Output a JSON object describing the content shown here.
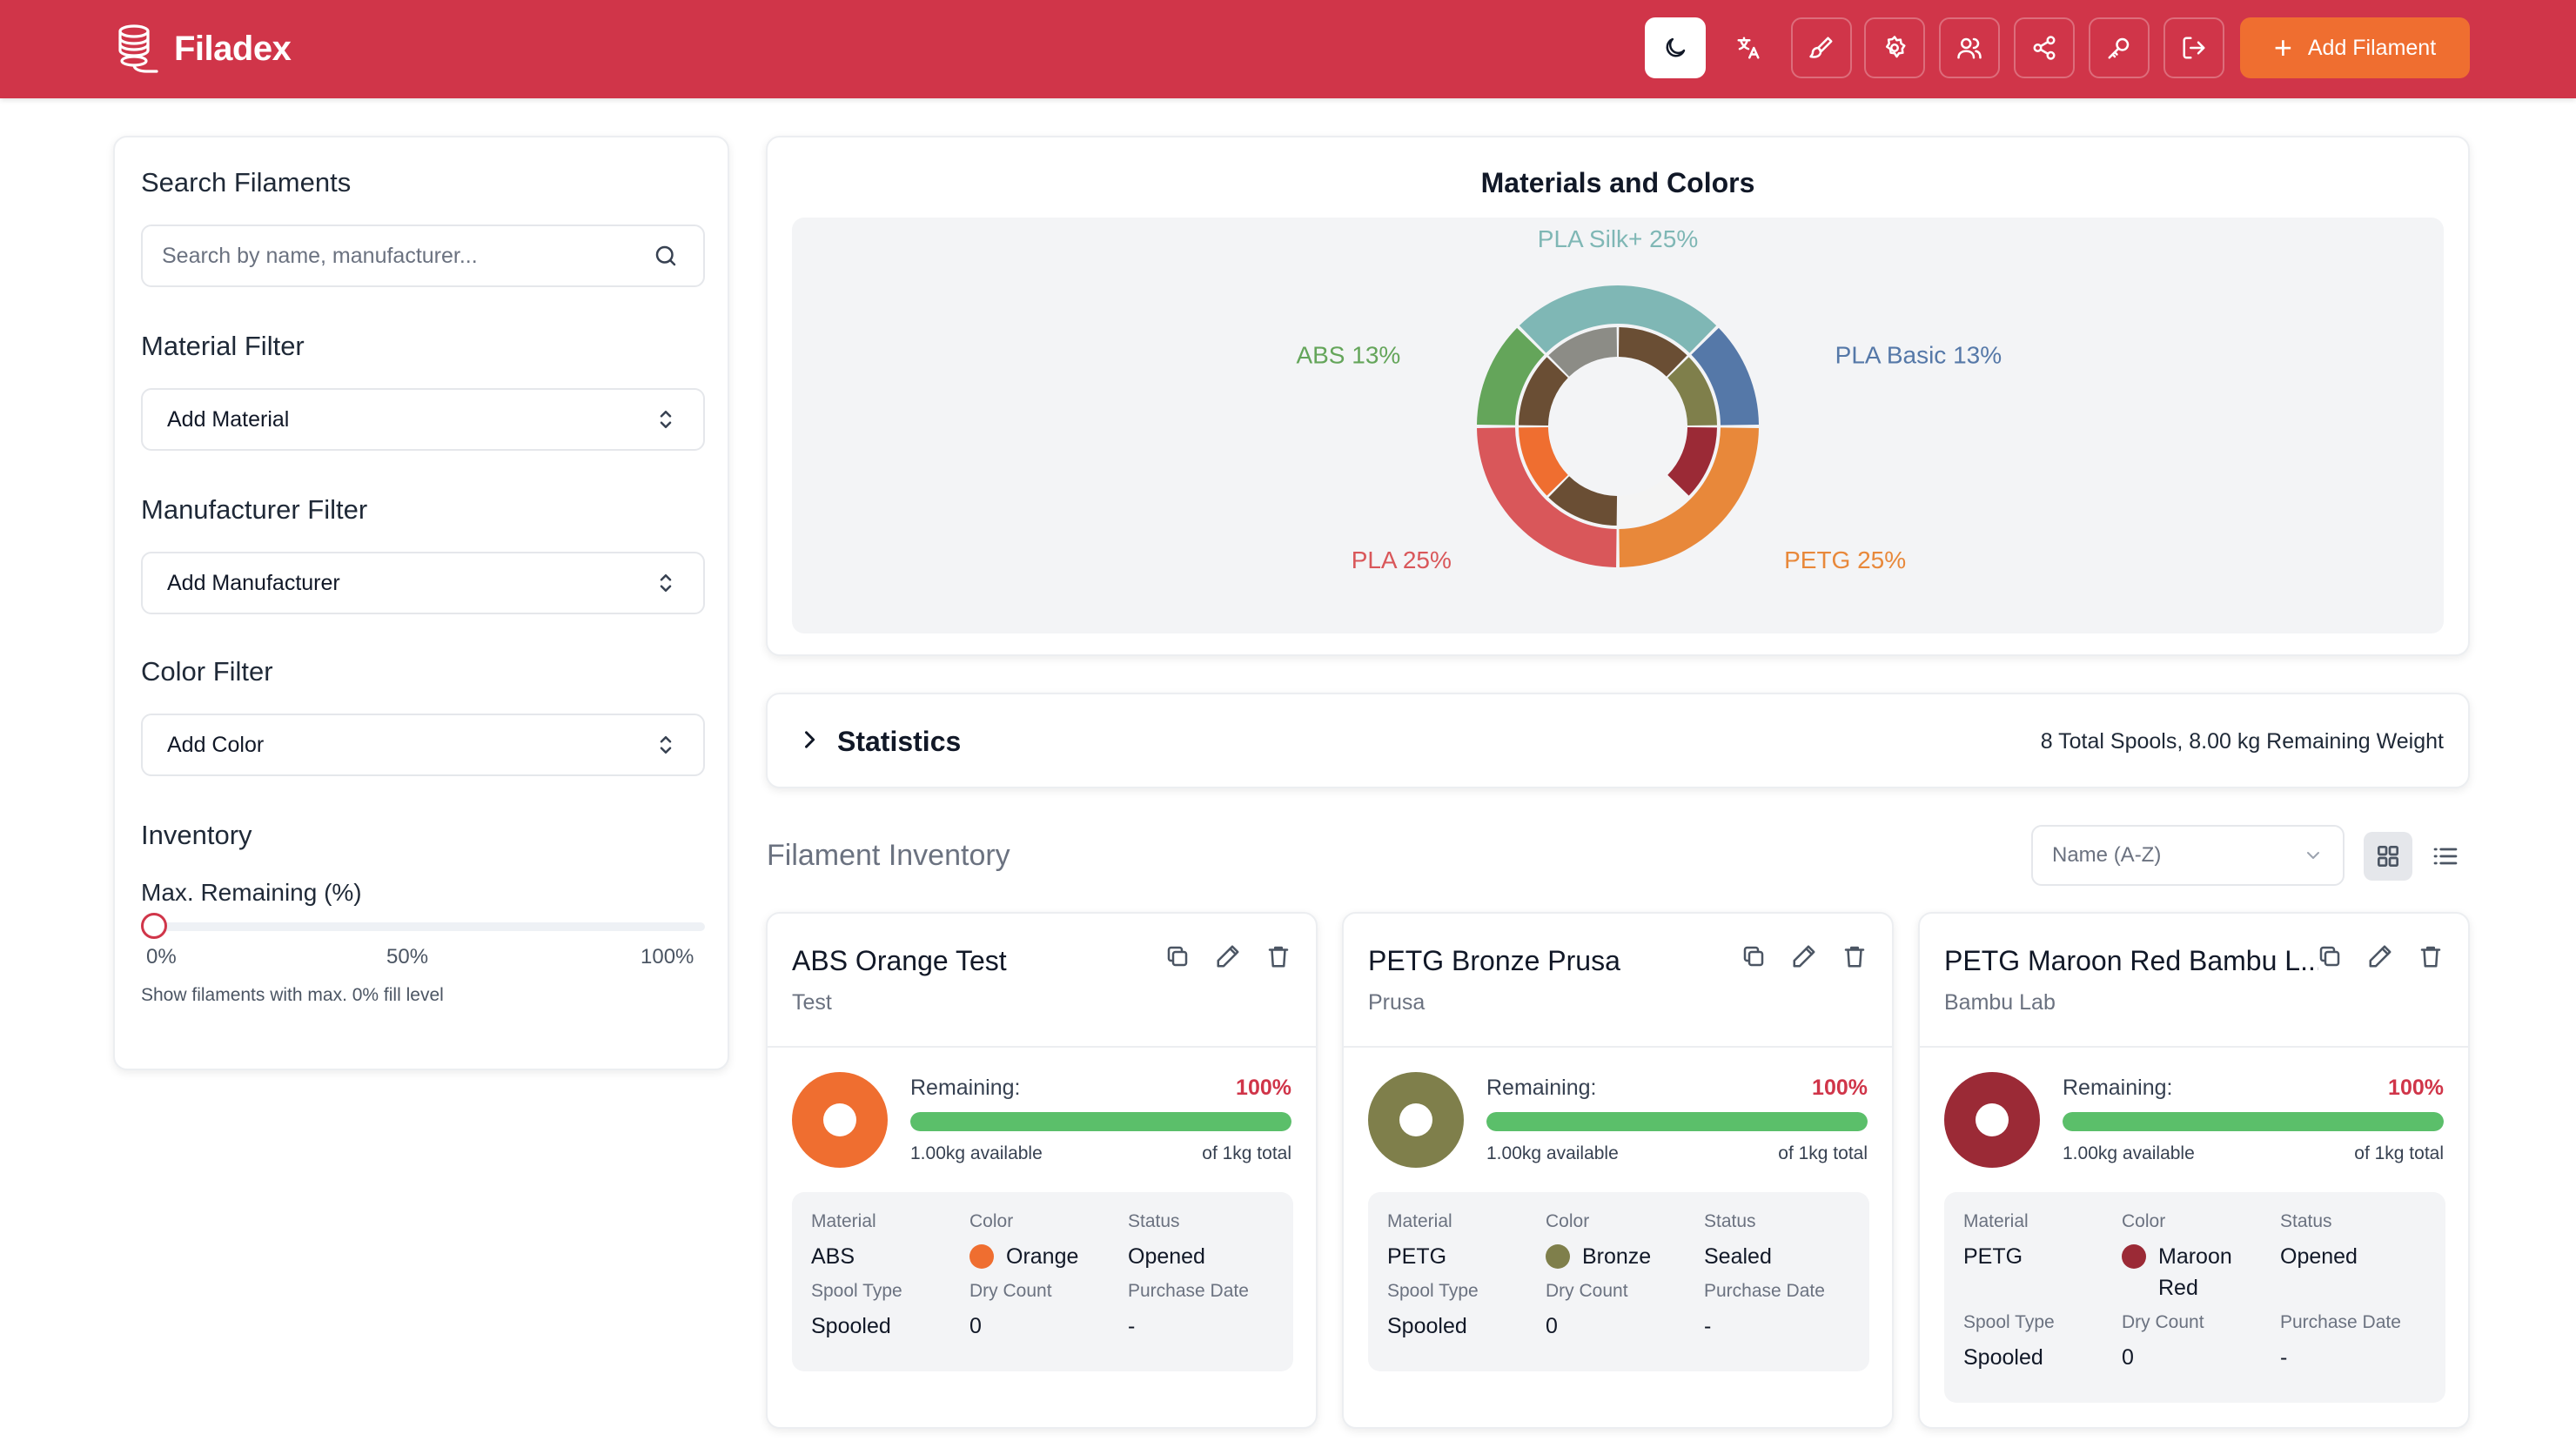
{
  "app": {
    "name": "Filadex"
  },
  "header": {
    "buttons": [
      {
        "name": "dark-mode-button",
        "icon": "moon-icon"
      },
      {
        "name": "language-button",
        "icon": "translate-icon"
      },
      {
        "name": "theme-button",
        "icon": "paintbrush-icon"
      },
      {
        "name": "settings-button",
        "icon": "gear-icon"
      },
      {
        "name": "users-button",
        "icon": "users-icon"
      },
      {
        "name": "share-button",
        "icon": "share-icon"
      },
      {
        "name": "password-button",
        "icon": "key-icon"
      },
      {
        "name": "logout-button",
        "icon": "logout-icon"
      }
    ],
    "add_filament_label": "Add Filament",
    "accent": "#d03549",
    "add_color": "#ef6e30"
  },
  "sidebar": {
    "search_title": "Search Filaments",
    "search_placeholder": "Search by name, manufacturer...",
    "material_title": "Material Filter",
    "material_select": "Add Material",
    "manufacturer_title": "Manufacturer Filter",
    "manufacturer_select": "Add Manufacturer",
    "color_title": "Color Filter",
    "color_select": "Add Color",
    "inventory_title": "Inventory",
    "max_remaining_label": "Max. Remaining (%)",
    "max_remaining_value": 0,
    "slider_min": "0%",
    "slider_mid": "50%",
    "slider_max": "100%",
    "slider_help": "Show filaments with max. 0% fill level"
  },
  "chart": {
    "title": "Materials and Colors"
  },
  "chart_data": {
    "type": "pie",
    "title": "Materials and Colors",
    "outer": [
      {
        "label": "PLA Silk+ 25%",
        "value": 25,
        "color": "#7fb7b5"
      },
      {
        "label": "PLA Basic 13%",
        "value": 12.5,
        "color": "#5578a8"
      },
      {
        "label": "PETG 25%",
        "value": 25,
        "color": "#e8883a"
      },
      {
        "label": "PLA 25%",
        "value": 25,
        "color": "#d9575a"
      },
      {
        "label": "ABS 13%",
        "value": 12.5,
        "color": "#64a55a"
      }
    ],
    "inner": [
      {
        "value": 12.5,
        "color": "#8c8c86"
      },
      {
        "value": 12.5,
        "color": "#6a4e34"
      },
      {
        "value": 12.5,
        "color": "#7f7f4b"
      },
      {
        "value": 12.5,
        "color": "#9b2a36"
      },
      {
        "value": 12.5,
        "color": "#f4f4f4"
      },
      {
        "value": 12.5,
        "color": "#6a4e34"
      },
      {
        "value": 12.5,
        "color": "#ef6e30"
      },
      {
        "value": 12.5,
        "color": "#6a4e34"
      }
    ]
  },
  "statistics": {
    "title": "Statistics",
    "summary": "8 Total Spools, 8.00 kg Remaining Weight"
  },
  "inventory": {
    "title": "Filament Inventory",
    "sort_value": "Name (A-Z)",
    "cards": [
      {
        "name": "ABS Orange Test",
        "manufacturer": "Test",
        "spool_color": "#ef6e30",
        "remaining_label": "Remaining:",
        "remaining_pct": "100%",
        "remaining_value": 1.0,
        "available": "1.00kg available",
        "total": "of 1kg total",
        "labels": {
          "material": "Material",
          "color": "Color",
          "status": "Status",
          "spool_type": "Spool Type",
          "dry_count": "Dry Count",
          "purchase_date": "Purchase Date"
        },
        "material": "ABS",
        "color": "Orange",
        "status": "Opened",
        "spool_type": "Spooled",
        "dry_count": "0",
        "purchase_date": "-"
      },
      {
        "name": "PETG Bronze Prusa",
        "manufacturer": "Prusa",
        "spool_color": "#7f7f4b",
        "remaining_label": "Remaining:",
        "remaining_pct": "100%",
        "remaining_value": 1.0,
        "available": "1.00kg available",
        "total": "of 1kg total",
        "labels": {
          "material": "Material",
          "color": "Color",
          "status": "Status",
          "spool_type": "Spool Type",
          "dry_count": "Dry Count",
          "purchase_date": "Purchase Date"
        },
        "material": "PETG",
        "color": "Bronze",
        "status": "Sealed",
        "spool_type": "Spooled",
        "dry_count": "0",
        "purchase_date": "-"
      },
      {
        "name": "PETG Maroon Red Bambu L...",
        "manufacturer": "Bambu Lab",
        "spool_color": "#9b2a36",
        "remaining_label": "Remaining:",
        "remaining_pct": "100%",
        "remaining_value": 1.0,
        "available": "1.00kg available",
        "total": "of 1kg total",
        "labels": {
          "material": "Material",
          "color": "Color",
          "status": "Status",
          "spool_type": "Spool Type",
          "dry_count": "Dry Count",
          "purchase_date": "Purchase Date"
        },
        "material": "PETG",
        "color": "Maroon Red",
        "status": "Opened",
        "spool_type": "Spooled",
        "dry_count": "0",
        "purchase_date": "-"
      }
    ]
  }
}
